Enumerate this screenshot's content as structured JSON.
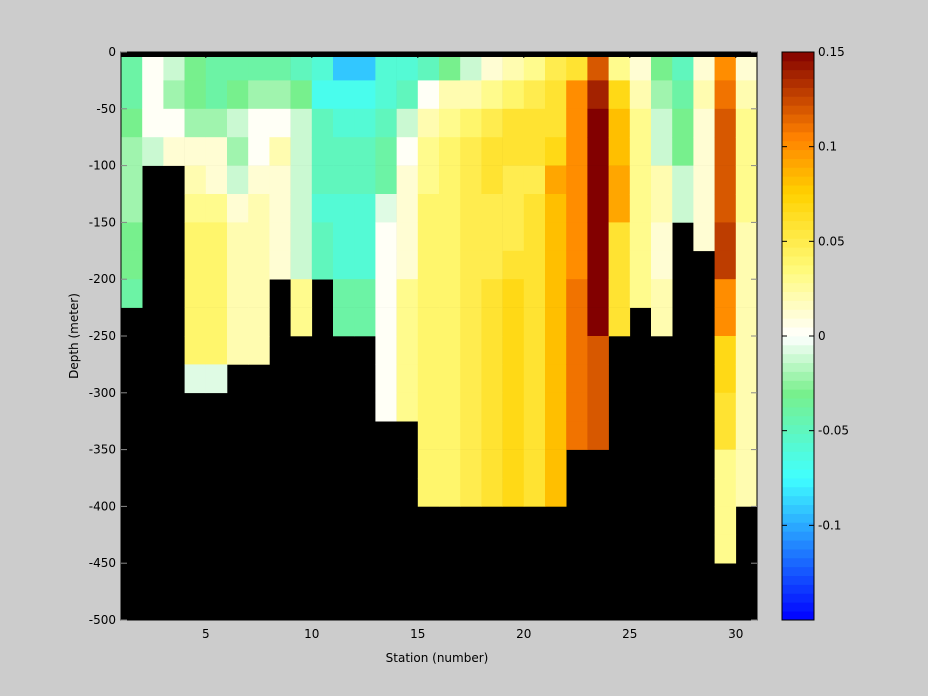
{
  "chart_data": {
    "type": "heatmap",
    "title": "",
    "xlabel": "Station (number)",
    "ylabel": "Depth (meter)",
    "xlim": [
      1,
      31
    ],
    "ylim": [
      -500,
      0
    ],
    "x_ticks": [
      5,
      10,
      15,
      20,
      25,
      30
    ],
    "y_ticks": [
      0,
      -50,
      -100,
      -150,
      -200,
      -250,
      -300,
      -350,
      -400,
      -450,
      -500
    ],
    "grid": false,
    "cell_depth_step": 25,
    "stations": [
      1,
      2,
      3,
      4,
      5,
      6,
      7,
      8,
      9,
      10,
      11,
      12,
      13,
      14,
      15,
      16,
      17,
      18,
      19,
      20,
      21,
      22,
      23,
      24,
      25,
      26,
      27,
      28,
      29,
      30
    ],
    "values": [
      [
        -0.04,
        -0.04,
        -0.03,
        -0.02,
        -0.02,
        -0.02,
        -0.03,
        -0.03,
        -0.04
      ],
      [
        0.0,
        0.0,
        0.0,
        -0.01
      ],
      [
        -0.01,
        -0.02,
        0.0,
        0.01
      ],
      [
        -0.03,
        -0.03,
        -0.02,
        0.01,
        0.02,
        0.03,
        0.04,
        0.04,
        0.04,
        0.04,
        0.04,
        -0.005
      ],
      [
        -0.04,
        -0.04,
        -0.02,
        0.01,
        0.01,
        0.03,
        0.04,
        0.04,
        0.04,
        0.04,
        0.04,
        -0.005
      ],
      [
        -0.04,
        -0.03,
        -0.01,
        -0.02,
        -0.01,
        0.01,
        0.02,
        0.02,
        0.02,
        0.02,
        0.02
      ],
      [
        -0.04,
        -0.02,
        0.0,
        0.0,
        0.01,
        0.02,
        0.02,
        0.02,
        0.02,
        0.02,
        0.02
      ],
      [
        -0.04,
        -0.02,
        0.0,
        0.02,
        0.01,
        0.01,
        0.01,
        0.01
      ],
      [
        -0.05,
        -0.03,
        -0.01,
        -0.01,
        -0.01,
        -0.01,
        -0.01,
        -0.01,
        0.03,
        0.03
      ],
      [
        -0.06,
        -0.07,
        -0.05,
        -0.05,
        -0.05,
        -0.06,
        -0.05,
        -0.05
      ],
      [
        -0.09,
        -0.07,
        -0.06,
        -0.05,
        -0.05,
        -0.06,
        -0.06,
        -0.06,
        -0.04,
        -0.04
      ],
      [
        -0.09,
        -0.07,
        -0.06,
        -0.05,
        -0.05,
        -0.06,
        -0.06,
        -0.06,
        -0.04,
        -0.04
      ],
      [
        -0.06,
        -0.06,
        -0.05,
        -0.04,
        -0.04,
        -0.005,
        0.0,
        0.0,
        0.0,
        0.0,
        0.0,
        0.0,
        0.0
      ],
      [
        -0.06,
        -0.05,
        -0.01,
        0.0,
        0.01,
        0.01,
        0.01,
        0.01,
        0.03,
        0.03,
        0.03,
        0.03,
        0.03
      ],
      [
        -0.05,
        0.0,
        0.02,
        0.03,
        0.03,
        0.04,
        0.04,
        0.04,
        0.04,
        0.04,
        0.04,
        0.04,
        0.04,
        0.04,
        0.04,
        0.04
      ],
      [
        -0.03,
        0.02,
        0.03,
        0.04,
        0.04,
        0.04,
        0.04,
        0.04,
        0.04,
        0.04,
        0.04,
        0.04,
        0.04,
        0.04,
        0.04,
        0.04
      ],
      [
        -0.01,
        0.02,
        0.04,
        0.05,
        0.05,
        0.05,
        0.05,
        0.05,
        0.05,
        0.05,
        0.05,
        0.05,
        0.05,
        0.05,
        0.05,
        0.05
      ],
      [
        0.01,
        0.03,
        0.05,
        0.06,
        0.06,
        0.05,
        0.05,
        0.05,
        0.06,
        0.06,
        0.06,
        0.06,
        0.06,
        0.06,
        0.06,
        0.06
      ],
      [
        0.02,
        0.04,
        0.06,
        0.06,
        0.05,
        0.05,
        0.05,
        0.06,
        0.07,
        0.07,
        0.07,
        0.07,
        0.07,
        0.07,
        0.07,
        0.07
      ],
      [
        0.03,
        0.05,
        0.06,
        0.06,
        0.05,
        0.06,
        0.06,
        0.06,
        0.06,
        0.06,
        0.06,
        0.06,
        0.06,
        0.06,
        0.06,
        0.06
      ],
      [
        0.05,
        0.06,
        0.06,
        0.07,
        0.09,
        0.08,
        0.08,
        0.08,
        0.08,
        0.08,
        0.08,
        0.08,
        0.08,
        0.08,
        0.08,
        0.08
      ],
      [
        0.06,
        0.1,
        0.1,
        0.1,
        0.1,
        0.1,
        0.1,
        0.1,
        0.11,
        0.11,
        0.11,
        0.11,
        0.11,
        0.11
      ],
      [
        0.12,
        0.14,
        0.15,
        0.15,
        0.15,
        0.15,
        0.15,
        0.15,
        0.15,
        0.15,
        0.12,
        0.12,
        0.12,
        0.12
      ],
      [
        0.03,
        0.07,
        0.08,
        0.08,
        0.09,
        0.09,
        0.06,
        0.06,
        0.06,
        0.06
      ],
      [
        0.01,
        0.02,
        0.03,
        0.03,
        0.03,
        0.03,
        0.03,
        0.03,
        0.03
      ],
      [
        -0.03,
        -0.02,
        -0.01,
        -0.01,
        0.02,
        0.02,
        0.01,
        0.01,
        0.02,
        0.02
      ],
      [
        -0.05,
        -0.04,
        -0.03,
        -0.03,
        -0.01,
        -0.01
      ],
      [
        0.01,
        0.02,
        0.01,
        0.01,
        0.01,
        0.01,
        0.01
      ],
      [
        0.1,
        0.11,
        0.12,
        0.12,
        0.12,
        0.12,
        0.13,
        0.13,
        0.1,
        0.1,
        0.07,
        0.07,
        0.06,
        0.06,
        0.03,
        0.03,
        0.03,
        0.03
      ],
      [
        0.01,
        0.02,
        0.03,
        0.03,
        0.03,
        0.03,
        0.02,
        0.02,
        0.02,
        0.02,
        0.02,
        0.02,
        0.02,
        0.02,
        0.02,
        0.02
      ]
    ],
    "colorbar": {
      "range": [
        -0.15,
        0.15
      ],
      "ticks": [
        0.15,
        0.1,
        0.05,
        0,
        -0.05,
        -0.1
      ],
      "tick_labels": [
        "0.15",
        "0.1",
        "0.05",
        "0",
        "-0.05",
        "-0.1"
      ],
      "steps": 64
    },
    "land_color": "#000000",
    "background_color": "#cccccc"
  }
}
